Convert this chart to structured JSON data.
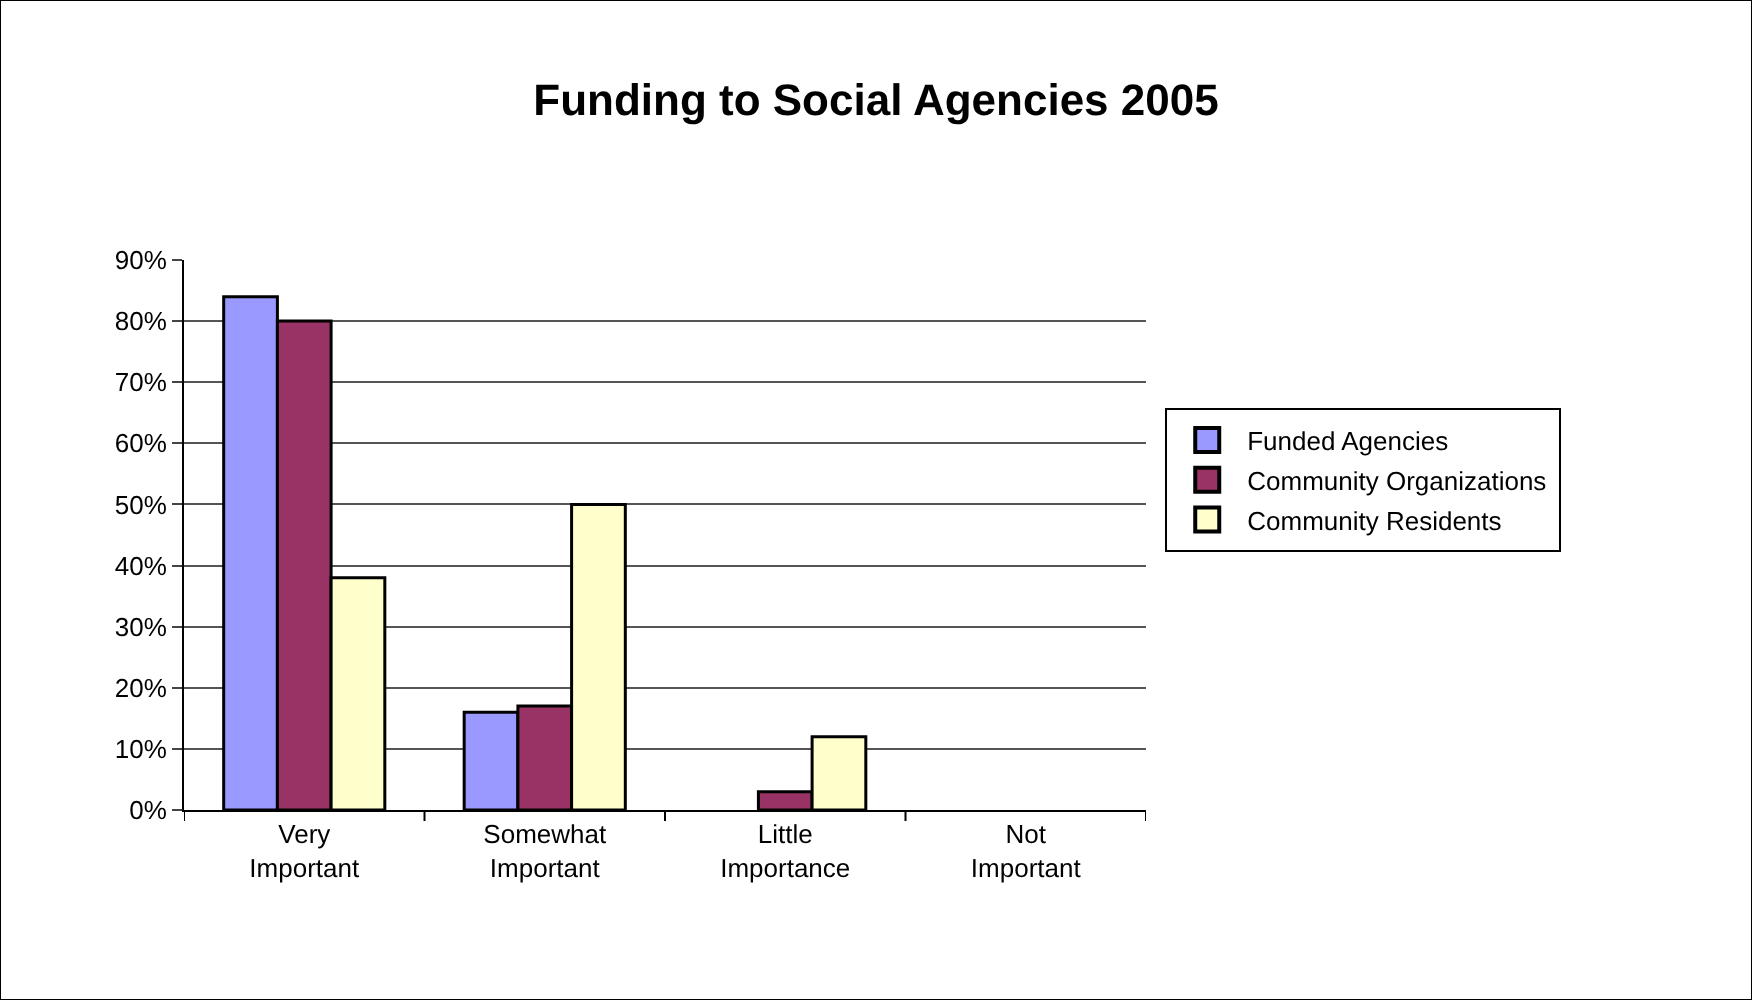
{
  "chart_data": {
    "type": "bar",
    "title": "Funding to Social Agencies 2005",
    "categories": [
      "Very\nImportant",
      "Somewhat\nImportant",
      "Little\nImportance",
      "Not\nImportant"
    ],
    "series": [
      {
        "name": "Funded Agencies",
        "color": "#9999ff",
        "values": [
          84,
          16,
          null,
          null
        ]
      },
      {
        "name": "Community Organizations",
        "color": "#993366",
        "values": [
          80,
          17,
          3,
          null
        ]
      },
      {
        "name": "Community Residents",
        "color": "#ffffcc",
        "values": [
          38,
          50,
          12,
          null
        ]
      }
    ],
    "ylim": [
      0,
      90
    ],
    "yticks": [
      {
        "value": 0,
        "label": "0%"
      },
      {
        "value": 10,
        "label": "10%"
      },
      {
        "value": 20,
        "label": "20%"
      },
      {
        "value": 30,
        "label": "30%"
      },
      {
        "value": 40,
        "label": "40%"
      },
      {
        "value": 50,
        "label": "50%"
      },
      {
        "value": 60,
        "label": "60%"
      },
      {
        "value": 70,
        "label": "70%"
      },
      {
        "value": 80,
        "label": "80%"
      },
      {
        "value": 90,
        "label": "90%"
      }
    ],
    "grid": "y",
    "legend": "right"
  }
}
